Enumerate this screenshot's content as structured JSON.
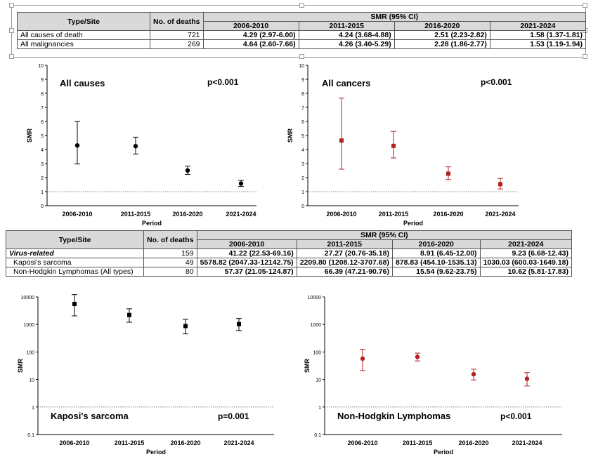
{
  "table1": {
    "headers": {
      "type_site": "Type/Site",
      "deaths": "No. of deaths",
      "smr": "SMR (95% CI)",
      "periods": [
        "2006-2010",
        "2011-2015",
        "2016-2020",
        "2021-2024"
      ]
    },
    "rows": [
      {
        "label": "All causes of death",
        "deaths": "721",
        "values": [
          "4.29 (2.97-6.00)",
          "4.24 (3.68-4.88)",
          "2.51 (2.23-2.82)",
          "1.58 (1.37-1.81)"
        ]
      },
      {
        "label": "All malignancies",
        "deaths": "269",
        "values": [
          "4.64 (2.60-7.66)",
          "4.26 (3.40-5.29)",
          "2.28 (1.86-2.77)",
          "1.53 (1.19-1.94)"
        ]
      }
    ]
  },
  "table2": {
    "headers": {
      "type_site": "Type/Site",
      "deaths": "No. of deaths",
      "smr": "SMR (95% CI)",
      "periods": [
        "2006-2010",
        "2011-2015",
        "2016-2020",
        "2021-2024"
      ]
    },
    "rows": [
      {
        "label": "Virus-related",
        "deaths": "159",
        "values": [
          "41.22 (22.53-69.16)",
          "27.27 (20.76-35.18)",
          "8.91 (6.45-12.00)",
          "9.23 (6.68-12.43)"
        ]
      },
      {
        "label": "Kaposi's sarcoma",
        "deaths": "49",
        "values": [
          "5578.82 (2047.33-12142.75)",
          "2209.80 (1208.12-3707.68)",
          "878.83 (454.10-1535.13)",
          "1030.03 (600.03-1649.18)"
        ]
      },
      {
        "label": "Non-Hodgkin Lymphomas (All types)",
        "deaths": "80",
        "values": [
          "57.37 (21.05-124.87)",
          "66.39 (47.21-90.76)",
          "15.54 (9.62-23.75)",
          "10.62 (5.81-17.83)"
        ]
      }
    ]
  },
  "chart_data": [
    {
      "type": "scatter",
      "title": "All causes",
      "pvalue": "p<0.001",
      "xlabel": "Period",
      "ylabel": "SMR",
      "scale": "linear",
      "ylim": [
        0,
        10
      ],
      "yticks": [
        "0",
        "1",
        "2",
        "3",
        "4",
        "5",
        "6",
        "7",
        "8",
        "9",
        "10"
      ],
      "reference_line": 1,
      "color": "#000000",
      "marker": "circle",
      "categories": [
        "2006-2010",
        "2011-2015",
        "2016-2020",
        "2021-2024"
      ],
      "values": [
        4.29,
        4.24,
        2.51,
        1.58
      ],
      "lower": [
        2.97,
        3.68,
        2.23,
        1.37
      ],
      "upper": [
        6.0,
        4.88,
        2.82,
        1.81
      ]
    },
    {
      "type": "scatter",
      "title": "All cancers",
      "pvalue": "p<0.001",
      "xlabel": "Period",
      "ylabel": "SMR",
      "scale": "linear",
      "ylim": [
        0,
        10
      ],
      "yticks": [
        "0",
        "1",
        "2",
        "3",
        "4",
        "5",
        "6",
        "7",
        "8",
        "9",
        "10"
      ],
      "reference_line": 1,
      "color": "#b22222",
      "marker": "square",
      "categories": [
        "2006-2010",
        "2011-2015",
        "2016-2020",
        "2021-2024"
      ],
      "values": [
        4.64,
        4.26,
        2.28,
        1.53
      ],
      "lower": [
        2.6,
        3.4,
        1.86,
        1.19
      ],
      "upper": [
        7.66,
        5.29,
        2.77,
        1.94
      ]
    },
    {
      "type": "scatter",
      "title": "Kaposi's sarcoma",
      "pvalue": "p=0.001",
      "xlabel": "Period",
      "ylabel": "SMR",
      "scale": "log",
      "ylim": [
        0.1,
        10000
      ],
      "yticks": [
        "0.1",
        "1",
        "10",
        "100",
        "1000",
        "10000"
      ],
      "reference_line": 1,
      "color": "#000000",
      "marker": "square",
      "categories": [
        "2006-2010",
        "2011-2015",
        "2016-2020",
        "2021-2024"
      ],
      "values": [
        5578.82,
        2209.8,
        878.83,
        1030.03
      ],
      "lower": [
        2047.33,
        1208.12,
        454.1,
        600.03
      ],
      "upper": [
        12142.75,
        3707.68,
        1535.13,
        1649.18
      ]
    },
    {
      "type": "scatter",
      "title": "Non-Hodgkin Lymphomas",
      "pvalue": "p<0.001",
      "xlabel": "Period",
      "ylabel": "SMR",
      "scale": "log",
      "ylim": [
        0.1,
        10000
      ],
      "yticks": [
        "0.1",
        "1",
        "10",
        "100",
        "1000",
        "10000"
      ],
      "reference_line": 1,
      "color": "#b22222",
      "marker": "circle",
      "categories": [
        "2006-2010",
        "2011-2015",
        "2016-2020",
        "2021-2024"
      ],
      "values": [
        57.37,
        66.39,
        15.54,
        10.62
      ],
      "lower": [
        21.05,
        47.21,
        9.62,
        5.81
      ],
      "upper": [
        124.87,
        90.76,
        23.75,
        17.83
      ]
    }
  ]
}
